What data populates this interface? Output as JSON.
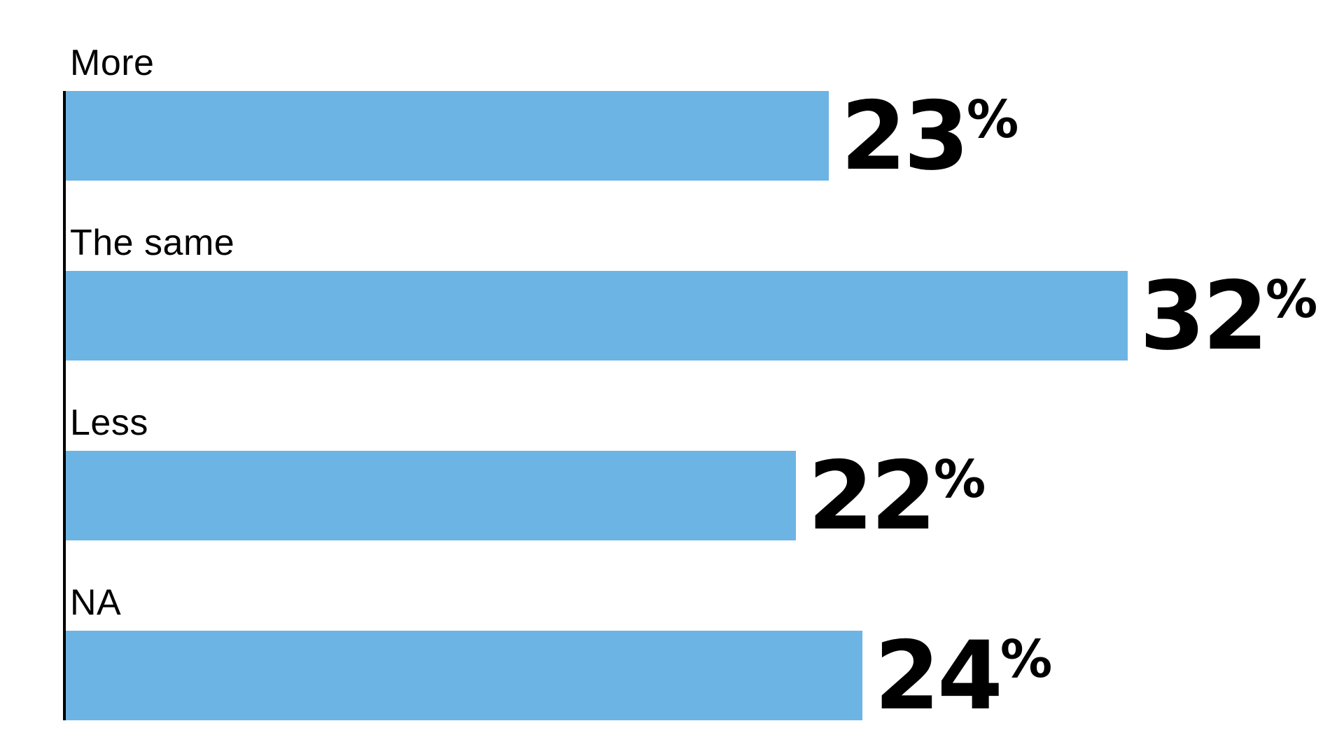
{
  "page": {
    "background": "#ffffff"
  },
  "chart_data": {
    "type": "bar",
    "orientation": "horizontal",
    "title": "",
    "xlabel": "",
    "ylabel": "",
    "categories": [
      "More",
      "The same",
      "Less",
      "NA"
    ],
    "values": [
      23,
      32,
      22,
      24
    ],
    "value_suffix": "%",
    "xlim": [
      0,
      38.5
    ],
    "grid": false,
    "legend": false,
    "bar_color": "#6CB4E3",
    "axis_line_color": "#000000",
    "label_color": "#000000",
    "value_label_color": "#000000"
  }
}
